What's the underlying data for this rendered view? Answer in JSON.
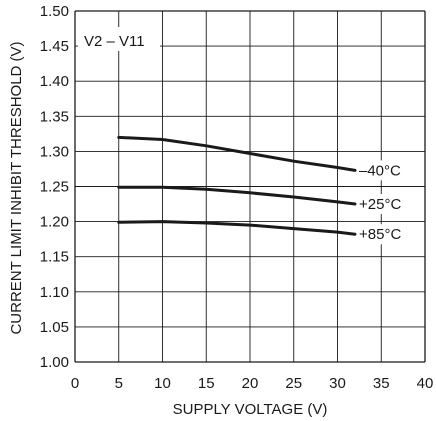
{
  "chart_data": {
    "type": "line",
    "xlabel": "SUPPLY VOLTAGE (V)",
    "ylabel": "CURRENT LIMIT INHIBIT THRESHOLD (V)",
    "annotation": "V2 – V11",
    "xlim": [
      0,
      40
    ],
    "ylim": [
      1.0,
      1.5
    ],
    "grid": true,
    "x_ticks": [
      "0",
      "5",
      "10",
      "15",
      "20",
      "25",
      "30",
      "35",
      "40"
    ],
    "y_ticks": [
      "1.00",
      "1.05",
      "1.10",
      "1.15",
      "1.20",
      "1.25",
      "1.30",
      "1.35",
      "1.40",
      "1.45",
      "1.50"
    ],
    "series": [
      {
        "name": "–40°C",
        "x": [
          5,
          10,
          15,
          20,
          25,
          30,
          32
        ],
        "y": [
          1.32,
          1.317,
          1.308,
          1.297,
          1.286,
          1.277,
          1.273
        ]
      },
      {
        "name": "+25°C",
        "x": [
          5,
          10,
          15,
          20,
          25,
          30,
          32
        ],
        "y": [
          1.249,
          1.249,
          1.246,
          1.241,
          1.235,
          1.228,
          1.225
        ]
      },
      {
        "name": "+85°C",
        "x": [
          5,
          10,
          15,
          20,
          25,
          30,
          32
        ],
        "y": [
          1.199,
          1.2,
          1.198,
          1.195,
          1.19,
          1.185,
          1.182
        ]
      }
    ],
    "colors": {
      "line": "#1a1a1a",
      "grid": "#1a1a1a"
    }
  }
}
